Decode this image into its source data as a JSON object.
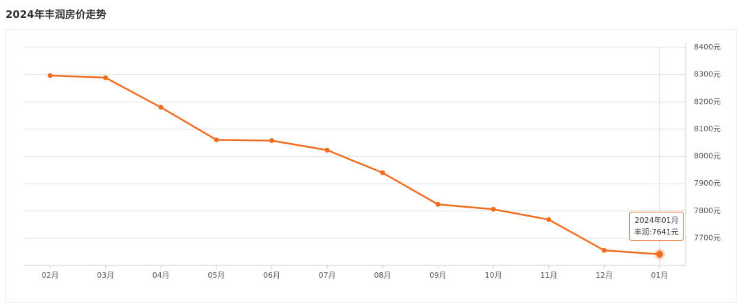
{
  "chart_data": {
    "type": "line",
    "title": "2024年丰润房价走势",
    "categories": [
      "02月",
      "03月",
      "04月",
      "05月",
      "06月",
      "07月",
      "08月",
      "09月",
      "10月",
      "11月",
      "12月",
      "01月"
    ],
    "series": [
      {
        "name": "丰润",
        "color": "#f26b1d",
        "values": [
          8297,
          8289,
          8180,
          8061,
          8058,
          8023,
          7940,
          7824,
          7806,
          7768,
          7655,
          7641
        ]
      }
    ],
    "ylim": [
      7600,
      8400
    ],
    "yticks": [
      {
        "value": 7700,
        "label": "7700元"
      },
      {
        "value": 7800,
        "label": "7800元"
      },
      {
        "value": 7900,
        "label": "7900元"
      },
      {
        "value": 8000,
        "label": "8000元"
      },
      {
        "value": 8100,
        "label": "8100元"
      },
      {
        "value": 8200,
        "label": "8200元"
      },
      {
        "value": 8300,
        "label": "8300元"
      },
      {
        "value": 8400,
        "label": "8400元"
      }
    ],
    "grid": true,
    "tooltip": {
      "title": "2024年01月",
      "label": "丰润:7641元"
    }
  }
}
